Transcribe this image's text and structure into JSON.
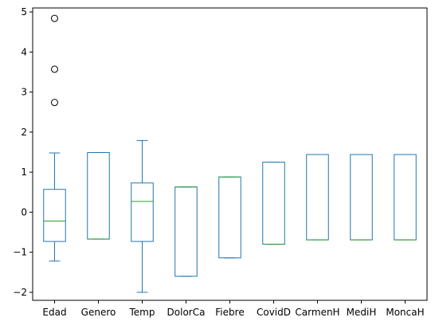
{
  "chart_data": {
    "type": "box",
    "title": "",
    "xlabel": "",
    "ylabel": "",
    "ylim": [
      -2.2,
      5.1
    ],
    "yticks": [
      -2,
      -1,
      0,
      1,
      2,
      3,
      4,
      5
    ],
    "ytick_labels": [
      "−2",
      "−1",
      "0",
      "1",
      "2",
      "3",
      "4",
      "5"
    ],
    "grid": false,
    "colors": {
      "box": "#1f77b4",
      "median": "#2ca02c",
      "outlier": "#000000"
    },
    "categories": [
      "Edad",
      "Genero",
      "Temp",
      "DolorCa",
      "Fiebre",
      "CovidD",
      "CarmenH",
      "MediH",
      "MoncaH"
    ],
    "boxes": [
      {
        "label": "Edad",
        "whislo": -1.22,
        "q1": -0.73,
        "med": -0.22,
        "q3": 0.57,
        "whishi": 1.48,
        "fliers": [
          2.74,
          3.57,
          4.84
        ]
      },
      {
        "label": "Genero",
        "whislo": -0.67,
        "q1": -0.67,
        "med": -0.67,
        "q3": 1.49,
        "whishi": 1.49,
        "fliers": []
      },
      {
        "label": "Temp",
        "whislo": -2.0,
        "q1": -0.73,
        "med": 0.27,
        "q3": 0.73,
        "whishi": 1.79,
        "fliers": []
      },
      {
        "label": "DolorCa",
        "whislo": -1.6,
        "q1": -1.6,
        "med": 0.63,
        "q3": 0.63,
        "whishi": 0.63,
        "fliers": []
      },
      {
        "label": "Fiebre",
        "whislo": -1.14,
        "q1": -1.14,
        "med": 0.88,
        "q3": 0.88,
        "whishi": 0.88,
        "fliers": []
      },
      {
        "label": "CovidD",
        "whislo": -0.8,
        "q1": -0.8,
        "med": -0.8,
        "q3": 1.25,
        "whishi": 1.25,
        "fliers": []
      },
      {
        "label": "CarmenH",
        "whislo": -0.69,
        "q1": -0.69,
        "med": -0.69,
        "q3": 1.44,
        "whishi": 1.44,
        "fliers": []
      },
      {
        "label": "MediH",
        "whislo": -0.69,
        "q1": -0.69,
        "med": -0.69,
        "q3": 1.44,
        "whishi": 1.44,
        "fliers": []
      },
      {
        "label": "MoncaH",
        "whislo": -0.69,
        "q1": -0.69,
        "med": -0.69,
        "q3": 1.44,
        "whishi": 1.44,
        "fliers": []
      }
    ]
  }
}
